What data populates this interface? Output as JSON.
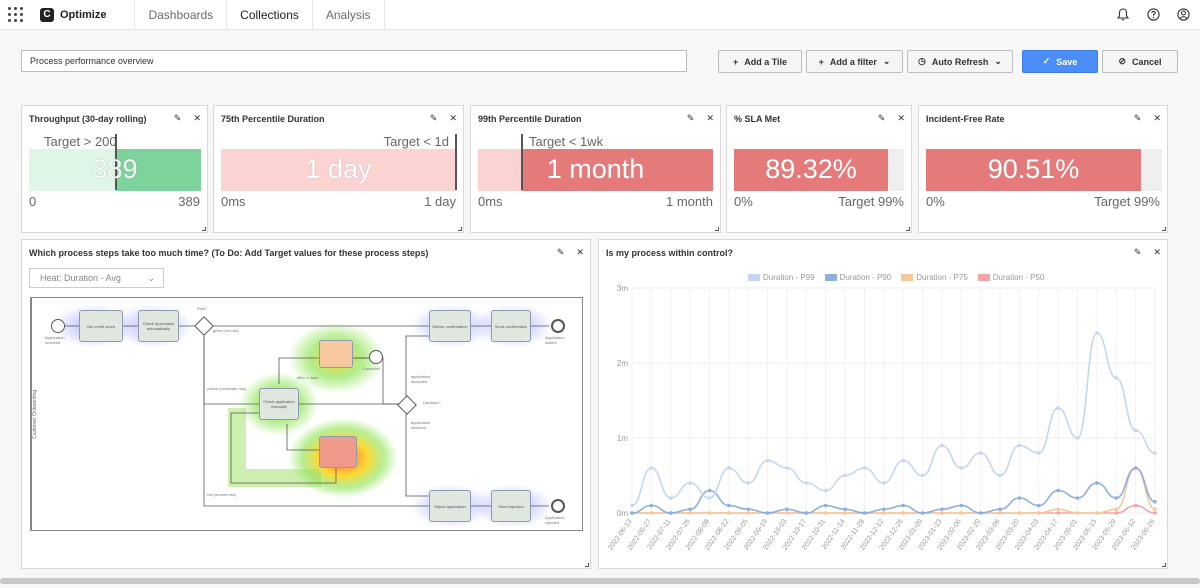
{
  "app": {
    "name": "Optimize",
    "logo_letter": "C"
  },
  "nav": [
    "Dashboards",
    "Collections",
    "Analysis"
  ],
  "icons": {
    "bell": "bell-icon",
    "help": "help-icon",
    "user": "user-icon"
  },
  "dashboard": {
    "title": "Process performance overview",
    "buttons": {
      "add_tile": "Add a Tile",
      "add_filter": "Add a filter",
      "auto_refresh": "Auto Refresh",
      "save": "Save",
      "cancel": "Cancel"
    }
  },
  "colors": {
    "accent": "#4c8ef7",
    "green": "#7ed39c",
    "green_light": "#dff6e7",
    "red": "#e47a7a",
    "red_light": "#fbd3d3"
  },
  "kpis": [
    {
      "title": "Throughput (30-day rolling)",
      "target": "Target > 200",
      "value": "389",
      "min": "0",
      "max": "389",
      "fill": 1.0
    },
    {
      "title": "75th Percentile Duration",
      "target": "Target < 1d",
      "value": "1 day",
      "min": "0ms",
      "max": "1 day",
      "fill": 0.0
    },
    {
      "title": "99th Percentile Duration",
      "target": "Target < 1wk",
      "value": "1 month",
      "min": "0ms",
      "max": "1 month",
      "fill": 1.0
    },
    {
      "title": "% SLA Met",
      "target": "Target 99%",
      "value": "89.32%",
      "min": "0%",
      "max": "",
      "fill": 0.9
    },
    {
      "title": "Incident-Free Rate",
      "target": "Target 99%",
      "value": "90.51%",
      "min": "0%",
      "max": "",
      "fill": 0.91
    }
  ],
  "heatmap": {
    "title": "Which process steps take too much time? (To Do: Add Target values for these process steps)",
    "select": "Heat: Duration - Avg",
    "lane": "Customer Onboarding",
    "tasks": [
      "Get credit score",
      "Check application automatically",
      "Deliver confirmation",
      "Send confirmation",
      "Reject application",
      "Send rejection",
      "Check application manually"
    ],
    "labels": [
      "Application received",
      "Risk?",
      "green (no risk)",
      "yellow (moderate risk)",
      "red (severe risk)",
      "Decision?",
      "application accepted",
      "application declined",
      "Application issued",
      "Application rejected",
      "Canceled",
      "after 1 days"
    ]
  },
  "chart_data": {
    "type": "line",
    "title": "Is my process within control?",
    "y_ticks": [
      "0m",
      "1m",
      "2m",
      "3m"
    ],
    "ylim": [
      0,
      3
    ],
    "x": [
      "2022-06-13",
      "2022-06-27",
      "2022-07-11",
      "2022-07-25",
      "2022-08-08",
      "2022-08-22",
      "2022-09-05",
      "2022-09-19",
      "2022-10-03",
      "2022-10-17",
      "2022-10-31",
      "2022-11-14",
      "2022-11-28",
      "2022-12-12",
      "2022-12-26",
      "2023-01-09",
      "2023-01-23",
      "2023-02-06",
      "2023-02-20",
      "2023-03-06",
      "2023-03-20",
      "2023-04-03",
      "2023-04-17",
      "2023-05-01",
      "2023-05-15",
      "2023-05-29",
      "2023-06-12",
      "2023-06-26"
    ],
    "series": [
      {
        "name": "Duration - P99",
        "color": "#c5d6ee",
        "values": [
          0.1,
          0.6,
          0.2,
          0.4,
          0.2,
          0.6,
          0.4,
          0.7,
          0.6,
          0.4,
          0.3,
          0.5,
          0.6,
          0.4,
          0.7,
          0.5,
          0.9,
          0.6,
          0.8,
          0.5,
          0.9,
          0.8,
          1.4,
          1.0,
          2.4,
          1.8,
          1.1,
          0.8
        ]
      },
      {
        "name": "Duration - P90",
        "color": "#8eaedc",
        "values": [
          0.0,
          0.1,
          0.0,
          0.05,
          0.3,
          0.1,
          0.05,
          0.0,
          0.05,
          0.0,
          0.1,
          0.05,
          0.0,
          0.05,
          0.1,
          0.0,
          0.05,
          0.1,
          0.0,
          0.05,
          0.2,
          0.1,
          0.3,
          0.2,
          0.4,
          0.2,
          0.6,
          0.15
        ]
      },
      {
        "name": "Duration - P75",
        "color": "#f7c89b",
        "values": [
          0.0,
          0.0,
          0.0,
          0.0,
          0.0,
          0.0,
          0.0,
          0.0,
          0.0,
          0.0,
          0.0,
          0.0,
          0.0,
          0.0,
          0.0,
          0.0,
          0.0,
          0.0,
          0.0,
          0.0,
          0.0,
          0.0,
          0.05,
          0.0,
          0.0,
          0.05,
          0.6,
          0.05
        ]
      },
      {
        "name": "Duration - P50",
        "color": "#f3a3a3",
        "values": [
          0.0,
          0.0,
          0.0,
          0.0,
          0.0,
          0.0,
          0.0,
          0.0,
          0.0,
          0.0,
          0.0,
          0.0,
          0.0,
          0.0,
          0.0,
          0.0,
          0.0,
          0.0,
          0.0,
          0.0,
          0.0,
          0.0,
          0.0,
          0.0,
          0.0,
          0.0,
          0.1,
          0.0
        ]
      }
    ]
  }
}
